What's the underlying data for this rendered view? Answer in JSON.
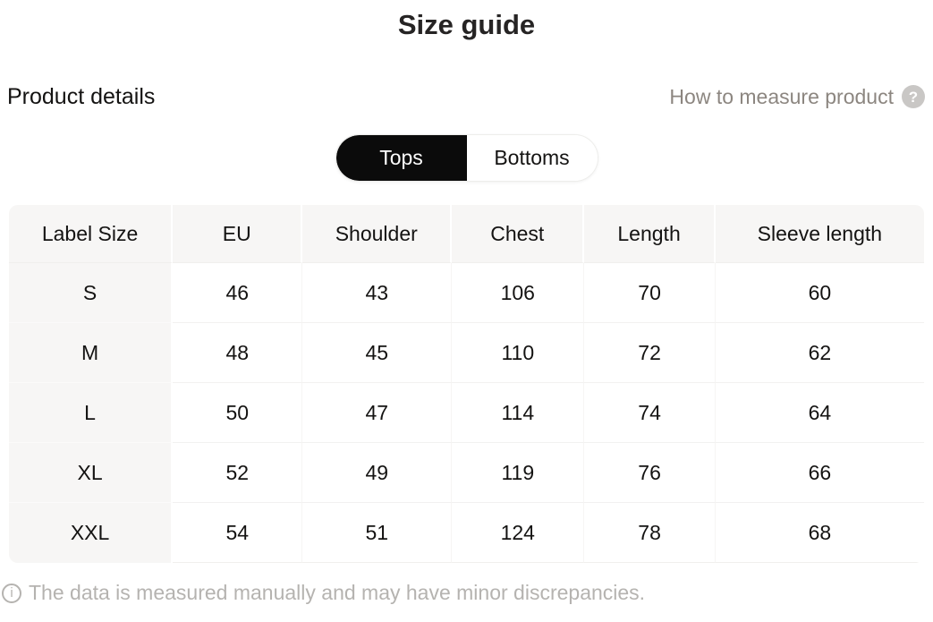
{
  "title": "Size guide",
  "subheader": {
    "product_details": "Product details",
    "how_to_measure": "How to measure product",
    "help_icon_glyph": "?"
  },
  "tabs": [
    {
      "label": "Tops",
      "active": true
    },
    {
      "label": "Bottoms",
      "active": false
    }
  ],
  "table": {
    "columns": [
      "Label Size",
      "EU",
      "Shoulder",
      "Chest",
      "Length",
      "Sleeve length"
    ],
    "rows": [
      {
        "label": "S",
        "values": [
          "46",
          "43",
          "106",
          "70",
          "60"
        ]
      },
      {
        "label": "M",
        "values": [
          "48",
          "45",
          "110",
          "72",
          "62"
        ]
      },
      {
        "label": "L",
        "values": [
          "50",
          "47",
          "114",
          "74",
          "64"
        ]
      },
      {
        "label": "XL",
        "values": [
          "52",
          "49",
          "119",
          "76",
          "66"
        ]
      },
      {
        "label": "XXL",
        "values": [
          "54",
          "51",
          "124",
          "78",
          "68"
        ]
      }
    ]
  },
  "footer": {
    "info_icon_glyph": "i",
    "note": "The data is measured manually and may have minor discrepancies."
  },
  "colors": {
    "pill_active_bg": "#0b0b0b",
    "table_header_bg": "#f7f6f5",
    "muted_text": "#8c8680",
    "footer_text": "#b5b3b0",
    "body_text": "#141312"
  }
}
